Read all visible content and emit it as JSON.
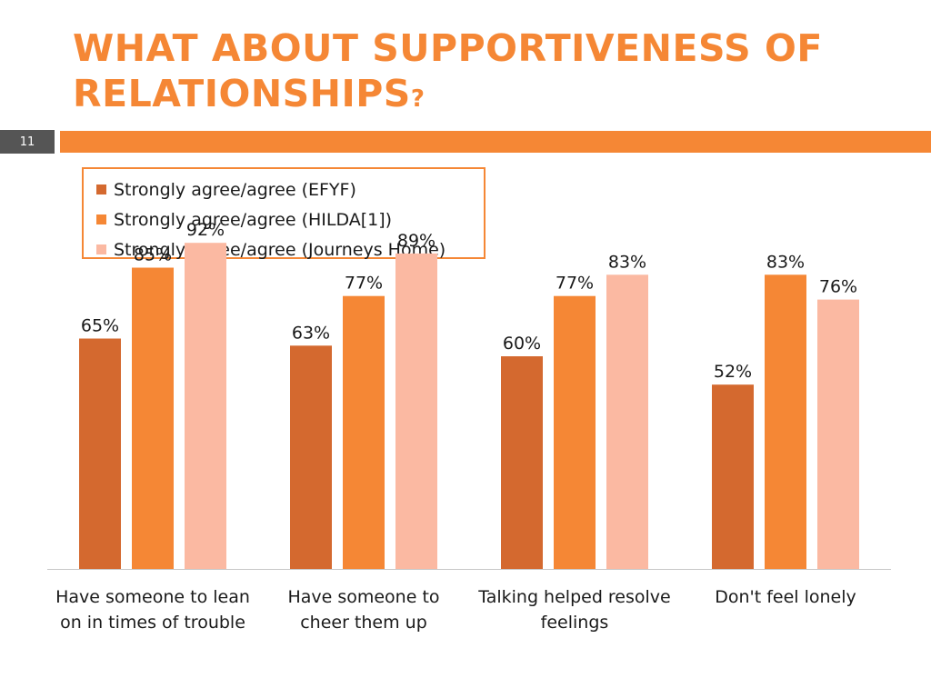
{
  "slide": {
    "title_main": "WHAT ABOUT SUPPORTIVENESS OF RELATIONSHIPS",
    "title_suffix": "?",
    "slide_number": "11"
  },
  "colors": {
    "accent": "#f58735",
    "slide_number_bg": "#555555"
  },
  "chart_data": {
    "type": "bar",
    "categories": [
      [
        "Have someone to lean",
        "on in times of trouble"
      ],
      [
        "Have someone to",
        "cheer them up"
      ],
      [
        "Talking helped resolve",
        "feelings"
      ],
      [
        "Don't feel lonely"
      ]
    ],
    "series": [
      {
        "name": "Strongly agree/agree (EFYF)",
        "color": "#d4692f",
        "values": [
          65,
          63,
          60,
          52
        ],
        "labels": [
          "65%",
          "63%",
          "60%",
          "52%"
        ]
      },
      {
        "name": "Strongly agree/agree (HILDA[1])",
        "color": "#f58735",
        "values": [
          85,
          77,
          77,
          83
        ],
        "labels": [
          "85%",
          "77%",
          "77%",
          "83%"
        ]
      },
      {
        "name": "Strongly agree/agree (Journeys Home)",
        "color": "#fbb9a2",
        "values": [
          92,
          89,
          83,
          76
        ],
        "labels": [
          "92%",
          "89%",
          "83%",
          "76%"
        ]
      }
    ],
    "ylim": [
      0,
      100
    ],
    "legend_position": "top-left",
    "grid": false
  }
}
